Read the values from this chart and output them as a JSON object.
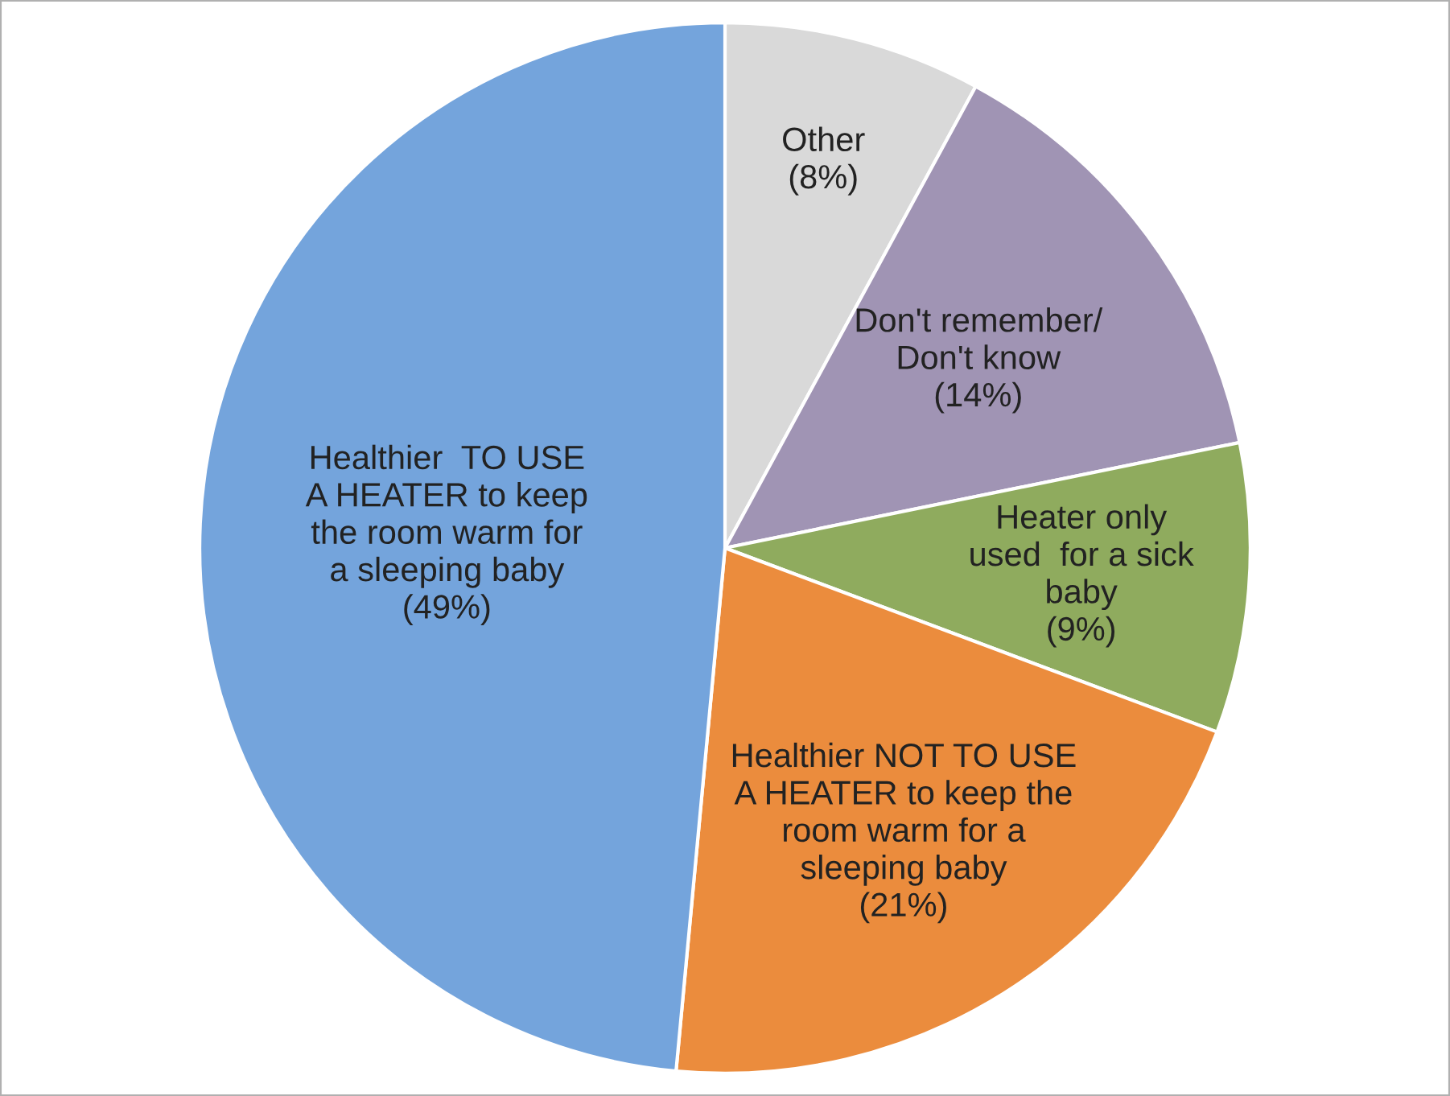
{
  "chart_data": {
    "type": "pie",
    "categories": [
      "Other",
      "Don't remember/\nDon't know",
      "Heater only\nused  for a sick\nbaby",
      "Healthier NOT TO USE\nA HEATER to keep the\nroom warm for a\nsleeping baby",
      "Healthier  TO USE\nA HEATER to keep\nthe room warm for\na sleeping baby"
    ],
    "values": [
      8,
      14,
      9,
      21,
      49
    ],
    "value_labels": [
      "(8%)",
      "(14%)",
      "(9%)",
      "(21%)",
      "(49%)"
    ],
    "colors": [
      "#d9d9d9",
      "#a094b4",
      "#8fab5e",
      "#eb8c3d",
      "#74a4dc"
    ]
  }
}
